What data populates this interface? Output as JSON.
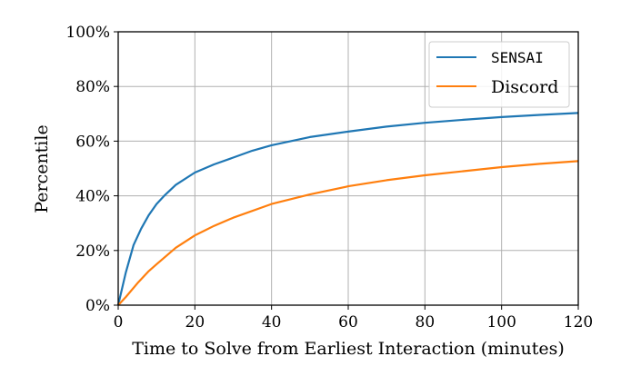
{
  "chart_data": {
    "type": "line",
    "title": "",
    "xlabel": "Time to Solve from Earliest Interaction (minutes)",
    "ylabel": "Percentile",
    "xlim": [
      0,
      120
    ],
    "ylim": [
      0,
      100
    ],
    "xticks": [
      0,
      20,
      40,
      60,
      80,
      100,
      120
    ],
    "xtick_labels": [
      "0",
      "20",
      "40",
      "60",
      "80",
      "100",
      "120"
    ],
    "yticks": [
      0,
      20,
      40,
      60,
      80,
      100
    ],
    "ytick_labels": [
      "0%",
      "20%",
      "40%",
      "60%",
      "80%",
      "100%"
    ],
    "grid": true,
    "legend_position": "top-right",
    "series": [
      {
        "name": "SENSAI",
        "color": "#1f77b4",
        "x": [
          0,
          1,
          2,
          4,
          6,
          8,
          10,
          12,
          15,
          20,
          25,
          30,
          35,
          40,
          50,
          60,
          70,
          80,
          90,
          100,
          110,
          120
        ],
        "y": [
          0,
          6,
          12,
          22,
          28,
          33,
          37,
          40,
          44,
          48.5,
          51.5,
          54,
          56.5,
          58.5,
          61.5,
          63.5,
          65.3,
          66.7,
          67.8,
          68.8,
          69.6,
          70.3
        ]
      },
      {
        "name": "Discord",
        "color": "#ff7f0e",
        "x": [
          0,
          2,
          5,
          8,
          10,
          15,
          20,
          25,
          30,
          40,
          50,
          60,
          70,
          80,
          90,
          100,
          110,
          120
        ],
        "y": [
          0,
          3,
          8,
          12.5,
          15,
          21,
          25.5,
          29,
          32,
          37,
          40.5,
          43.5,
          45.7,
          47.5,
          49,
          50.5,
          51.7,
          52.7
        ]
      }
    ]
  }
}
